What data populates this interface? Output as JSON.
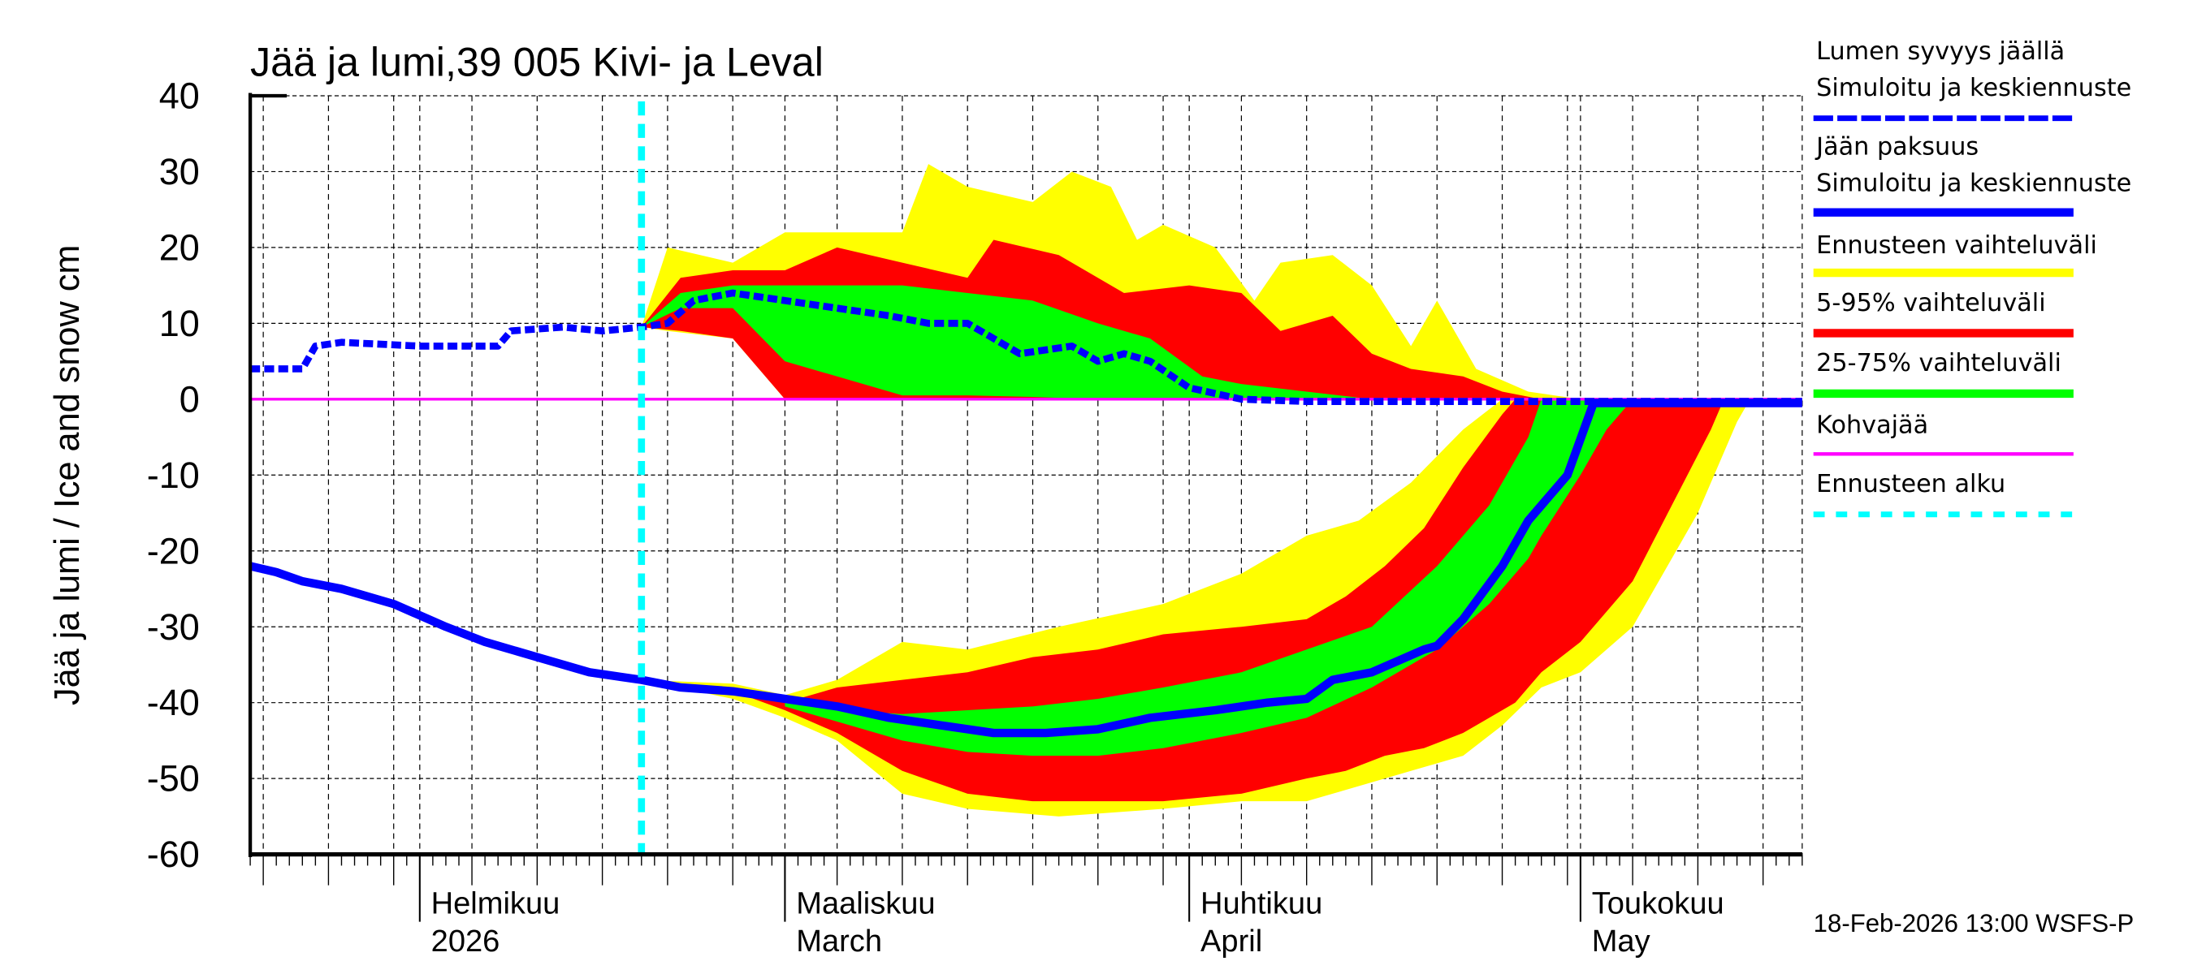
{
  "chart_data": {
    "type": "area",
    "title": "Jää ja lumi,39 005 Kivi- ja Leval",
    "ylabel": "Jää ja lumi / Ice and snow    cm",
    "xlabel": "",
    "ylim": [
      -60,
      40
    ],
    "yticks": [
      40,
      30,
      20,
      10,
      0,
      -10,
      -20,
      -30,
      -40,
      -50,
      -60
    ],
    "xlim": [
      "2026-01-19",
      "2026-05-18"
    ],
    "grid": true,
    "legend_position": "right",
    "forecast_start": "2026-02-18",
    "month_labels": [
      {
        "date": "2026-02-01",
        "fi": "Helmikuu",
        "en": "2026"
      },
      {
        "date": "2026-03-01",
        "fi": "Maaliskuu",
        "en": "March"
      },
      {
        "date": "2026-04-01",
        "fi": "Huhtikuu",
        "en": "April"
      },
      {
        "date": "2026-05-01",
        "fi": "Toukokuu",
        "en": "May"
      }
    ],
    "footer": "18-Feb-2026 13:00 WSFS-P",
    "colors": {
      "snow": "#0000ff",
      "ice": "#0000ff",
      "range_full": "#ffff00",
      "range_5_95": "#ff0000",
      "range_25_75": "#00ff00",
      "slush_ice": "#ff00ff",
      "forecast_start": "#00ffff"
    },
    "legend": [
      {
        "line1": "Lumen syvyys jäällä",
        "line2": "Simuloitu ja keskiennuste",
        "color": "#0000ff",
        "style": "dotted"
      },
      {
        "line1": "Jään paksuus",
        "line2": "Simuloitu ja keskiennuste",
        "color": "#0000ff",
        "style": "solid"
      },
      {
        "line1": "Ennusteen vaihteluväli",
        "color": "#ffff00",
        "style": "band"
      },
      {
        "line1": "5-95% vaihteluväli",
        "color": "#ff0000",
        "style": "band"
      },
      {
        "line1": "25-75% vaihteluväli",
        "color": "#00ff00",
        "style": "band"
      },
      {
        "line1": "Kohvajää",
        "color": "#ff00ff",
        "style": "thin"
      },
      {
        "line1": "Ennusteen alku",
        "color": "#00ffff",
        "style": "dashed"
      }
    ],
    "snow_bands": {
      "full": [
        [
          "2026-02-18",
          9.5,
          9.5
        ],
        [
          "2026-02-20",
          9,
          20
        ],
        [
          "2026-02-25",
          8,
          18
        ],
        [
          "2026-03-01",
          0,
          22
        ],
        [
          "2026-03-10",
          0,
          22
        ],
        [
          "2026-03-12",
          0,
          31
        ],
        [
          "2026-03-15",
          0,
          28
        ],
        [
          "2026-03-20",
          0,
          26
        ],
        [
          "2026-03-23",
          0,
          30
        ],
        [
          "2026-03-26",
          0,
          28
        ],
        [
          "2026-03-28",
          0,
          21
        ],
        [
          "2026-03-30",
          0,
          23
        ],
        [
          "2026-04-03",
          0,
          20
        ],
        [
          "2026-04-06",
          0,
          13
        ],
        [
          "2026-04-08",
          0,
          18
        ],
        [
          "2026-04-12",
          0,
          19
        ],
        [
          "2026-04-15",
          0,
          15
        ],
        [
          "2026-04-18",
          0,
          7
        ],
        [
          "2026-04-20",
          0,
          13
        ],
        [
          "2026-04-23",
          0,
          4
        ],
        [
          "2026-04-27",
          0,
          1
        ],
        [
          "2026-05-01",
          0,
          0
        ]
      ],
      "p5_95": [
        [
          "2026-02-18",
          9.5,
          9.5
        ],
        [
          "2026-02-21",
          9,
          16
        ],
        [
          "2026-02-25",
          8,
          17
        ],
        [
          "2026-03-01",
          0,
          17
        ],
        [
          "2026-03-05",
          0,
          20
        ],
        [
          "2026-03-10",
          0,
          18
        ],
        [
          "2026-03-15",
          0,
          16
        ],
        [
          "2026-03-17",
          0,
          21
        ],
        [
          "2026-03-22",
          0,
          19
        ],
        [
          "2026-03-27",
          0,
          14
        ],
        [
          "2026-04-01",
          0,
          15
        ],
        [
          "2026-04-05",
          0,
          14
        ],
        [
          "2026-04-08",
          0,
          9
        ],
        [
          "2026-04-12",
          0,
          11
        ],
        [
          "2026-04-15",
          0,
          6
        ],
        [
          "2026-04-18",
          0,
          4
        ],
        [
          "2026-04-22",
          0,
          3
        ],
        [
          "2026-04-25",
          0,
          1
        ],
        [
          "2026-04-28",
          0,
          0
        ]
      ],
      "p25_75": [
        [
          "2026-02-18",
          9.5,
          9.5
        ],
        [
          "2026-02-21",
          12,
          14
        ],
        [
          "2026-02-25",
          12,
          15
        ],
        [
          "2026-03-01",
          5,
          15
        ],
        [
          "2026-03-05",
          3,
          15
        ],
        [
          "2026-03-10",
          0.5,
          15
        ],
        [
          "2026-03-15",
          0.5,
          14
        ],
        [
          "2026-03-20",
          0.3,
          13
        ],
        [
          "2026-03-25",
          0,
          10
        ],
        [
          "2026-03-29",
          0,
          8
        ],
        [
          "2026-04-02",
          0,
          3
        ],
        [
          "2026-04-05",
          0,
          2
        ],
        [
          "2026-04-10",
          0,
          1
        ],
        [
          "2026-04-15",
          0,
          0
        ]
      ]
    },
    "ice_bands": {
      "full": [
        [
          "2026-02-18",
          -37,
          -37
        ],
        [
          "2026-02-25",
          -39.5,
          -37.5
        ],
        [
          "2026-03-01",
          -42,
          -39
        ],
        [
          "2026-03-05",
          -45,
          -37
        ],
        [
          "2026-03-10",
          -52,
          -32
        ],
        [
          "2026-03-15",
          -54,
          -33
        ],
        [
          "2026-03-22",
          -55,
          -30
        ],
        [
          "2026-03-30",
          -54,
          -27
        ],
        [
          "2026-04-05",
          -53,
          -23
        ],
        [
          "2026-04-10",
          -53,
          -18
        ],
        [
          "2026-04-14",
          -51,
          -16
        ],
        [
          "2026-04-18",
          -49,
          -11
        ],
        [
          "2026-04-22",
          -47,
          -4
        ],
        [
          "2026-04-25",
          -43,
          0
        ],
        [
          "2026-04-28",
          -38,
          0
        ],
        [
          "2026-05-01",
          -36,
          0
        ],
        [
          "2026-05-05",
          -30,
          0
        ],
        [
          "2026-05-10",
          -15,
          0
        ],
        [
          "2026-05-13",
          -3,
          0
        ],
        [
          "2026-05-14",
          0,
          0
        ]
      ],
      "p5_95": [
        [
          "2026-02-25",
          -38.5,
          -38.5
        ],
        [
          "2026-03-01",
          -41,
          -40
        ],
        [
          "2026-03-05",
          -44,
          -38
        ],
        [
          "2026-03-10",
          -49,
          -37
        ],
        [
          "2026-03-15",
          -52,
          -36
        ],
        [
          "2026-03-20",
          -53,
          -34
        ],
        [
          "2026-03-25",
          -53,
          -33
        ],
        [
          "2026-03-30",
          -53,
          -31
        ],
        [
          "2026-04-05",
          -52,
          -30
        ],
        [
          "2026-04-10",
          -50,
          -29
        ],
        [
          "2026-04-13",
          -49,
          -26
        ],
        [
          "2026-04-16",
          -47,
          -22
        ],
        [
          "2026-04-19",
          -46,
          -17
        ],
        [
          "2026-04-22",
          -44,
          -9
        ],
        [
          "2026-04-25",
          -41,
          -2
        ],
        [
          "2026-04-26",
          -40,
          0
        ],
        [
          "2026-04-28",
          -36,
          0
        ],
        [
          "2026-05-01",
          -32,
          0
        ],
        [
          "2026-05-05",
          -24,
          0
        ],
        [
          "2026-05-08",
          -14,
          0
        ],
        [
          "2026-05-11",
          -4,
          0
        ],
        [
          "2026-05-12",
          0,
          0
        ]
      ],
      "p25_75": [
        [
          "2026-03-01",
          -40.5,
          -40
        ],
        [
          "2026-03-05",
          -42.5,
          -41
        ],
        [
          "2026-03-10",
          -45,
          -41.5
        ],
        [
          "2026-03-15",
          -46.5,
          -41
        ],
        [
          "2026-03-20",
          -47,
          -40.5
        ],
        [
          "2026-03-25",
          -47,
          -39.5
        ],
        [
          "2026-03-30",
          -46,
          -38
        ],
        [
          "2026-04-05",
          -44,
          -36
        ],
        [
          "2026-04-10",
          -42,
          -33
        ],
        [
          "2026-04-15",
          -38,
          -30
        ],
        [
          "2026-04-20",
          -33,
          -22
        ],
        [
          "2026-04-24",
          -27,
          -14
        ],
        [
          "2026-04-27",
          -21,
          -5
        ],
        [
          "2026-04-28",
          -18,
          0
        ],
        [
          "2026-05-01",
          -10,
          0
        ],
        [
          "2026-05-03",
          -4,
          0
        ],
        [
          "2026-05-05",
          0,
          0
        ]
      ]
    },
    "snow_depth": [
      [
        "2026-01-19",
        4
      ],
      [
        "2026-01-23",
        4
      ],
      [
        "2026-01-24",
        7
      ],
      [
        "2026-01-26",
        7.5
      ],
      [
        "2026-02-01",
        7
      ],
      [
        "2026-02-07",
        7
      ],
      [
        "2026-02-08",
        9
      ],
      [
        "2026-02-12",
        9.5
      ],
      [
        "2026-02-15",
        9
      ],
      [
        "2026-02-18",
        9.5
      ],
      [
        "2026-02-20",
        10
      ],
      [
        "2026-02-22",
        13
      ],
      [
        "2026-02-25",
        14
      ],
      [
        "2026-03-01",
        13
      ],
      [
        "2026-03-05",
        12
      ],
      [
        "2026-03-09",
        11
      ],
      [
        "2026-03-12",
        10
      ],
      [
        "2026-03-15",
        10
      ],
      [
        "2026-03-17",
        8
      ],
      [
        "2026-03-19",
        6
      ],
      [
        "2026-03-23",
        7
      ],
      [
        "2026-03-25",
        5
      ],
      [
        "2026-03-27",
        6
      ],
      [
        "2026-03-29",
        5
      ],
      [
        "2026-04-01",
        1.5
      ],
      [
        "2026-04-05",
        0
      ],
      [
        "2026-04-10",
        -0.3
      ],
      [
        "2026-05-18",
        -0.3
      ]
    ],
    "ice_thickness": [
      [
        "2026-01-19",
        -22
      ],
      [
        "2026-01-21",
        -22.8
      ],
      [
        "2026-01-23",
        -24
      ],
      [
        "2026-01-26",
        -25
      ],
      [
        "2026-01-30",
        -27
      ],
      [
        "2026-02-03",
        -30
      ],
      [
        "2026-02-06",
        -32
      ],
      [
        "2026-02-10",
        -34
      ],
      [
        "2026-02-14",
        -36
      ],
      [
        "2026-02-18",
        -37
      ],
      [
        "2026-02-21",
        -38
      ],
      [
        "2026-02-25",
        -38.5
      ],
      [
        "2026-03-01",
        -39.5
      ],
      [
        "2026-03-05",
        -40.5
      ],
      [
        "2026-03-09",
        -42
      ],
      [
        "2026-03-13",
        -43
      ],
      [
        "2026-03-17",
        -44
      ],
      [
        "2026-03-21",
        -44
      ],
      [
        "2026-03-25",
        -43.5
      ],
      [
        "2026-03-29",
        -42
      ],
      [
        "2026-04-03",
        -41
      ],
      [
        "2026-04-07",
        -40
      ],
      [
        "2026-04-10",
        -39.5
      ],
      [
        "2026-04-12",
        -37
      ],
      [
        "2026-04-15",
        -36
      ],
      [
        "2026-04-17",
        -34.5
      ],
      [
        "2026-04-19",
        -33
      ],
      [
        "2026-04-20",
        -32.5
      ],
      [
        "2026-04-22",
        -29
      ],
      [
        "2026-04-25",
        -22
      ],
      [
        "2026-04-27",
        -16
      ],
      [
        "2026-04-30",
        -10
      ],
      [
        "2026-05-02",
        -0.5
      ],
      [
        "2026-05-18",
        -0.5
      ]
    ],
    "slush_ice": [
      [
        "2026-01-19",
        0
      ],
      [
        "2026-05-18",
        0
      ]
    ]
  }
}
